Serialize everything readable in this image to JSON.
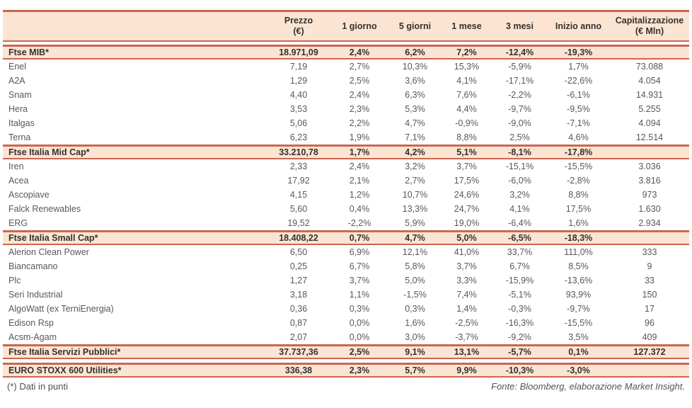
{
  "colors": {
    "band_background": "#fbe5d2",
    "border": "#c96753",
    "header_text": "#343130",
    "row_text": "#585858"
  },
  "table": {
    "header": {
      "cols": [
        {
          "l1": "Prezzo",
          "l2": "(€)"
        },
        {
          "l1": "1 giorno",
          "l2": ""
        },
        {
          "l1": "5 giorni",
          "l2": ""
        },
        {
          "l1": "1 mese",
          "l2": ""
        },
        {
          "l1": "3 mesi",
          "l2": ""
        },
        {
          "l1": "Inizio anno",
          "l2": ""
        },
        {
          "l1": "Capitalizzazione",
          "l2": "(€ Mln)"
        }
      ]
    },
    "sections": [
      {
        "index": {
          "name": "Ftse MIB*",
          "values": [
            "18.971,09",
            "2,4%",
            "6,2%",
            "7,2%",
            "-12,4%",
            "-19,3%",
            ""
          ]
        },
        "rows": [
          {
            "name": "Enel",
            "values": [
              "7,19",
              "2,7%",
              "10,3%",
              "15,3%",
              "-5,9%",
              "1,7%",
              "73.088"
            ]
          },
          {
            "name": "A2A",
            "values": [
              "1,29",
              "2,5%",
              "3,6%",
              "4,1%",
              "-17,1%",
              "-22,6%",
              "4.054"
            ]
          },
          {
            "name": "Snam",
            "values": [
              "4,40",
              "2,4%",
              "6,3%",
              "7,6%",
              "-2,2%",
              "-6,1%",
              "14.931"
            ]
          },
          {
            "name": "Hera",
            "values": [
              "3,53",
              "2,3%",
              "5,3%",
              "4,4%",
              "-9,7%",
              "-9,5%",
              "5.255"
            ]
          },
          {
            "name": "Italgas",
            "values": [
              "5,06",
              "2,2%",
              "4,7%",
              "-0,9%",
              "-9,0%",
              "-7,1%",
              "4.094"
            ]
          },
          {
            "name": "Terna",
            "values": [
              "6,23",
              "1,9%",
              "7,1%",
              "8,8%",
              "2,5%",
              "4,6%",
              "12.514"
            ]
          }
        ]
      },
      {
        "index": {
          "name": "Ftse Italia Mid Cap*",
          "values": [
            "33.210,78",
            "1,7%",
            "4,2%",
            "5,1%",
            "-8,1%",
            "-17,8%",
            ""
          ]
        },
        "rows": [
          {
            "name": "Iren",
            "values": [
              "2,33",
              "2,4%",
              "3,2%",
              "3,7%",
              "-15,1%",
              "-15,5%",
              "3.036"
            ]
          },
          {
            "name": "Acea",
            "values": [
              "17,92",
              "2,1%",
              "2,7%",
              "17,5%",
              "-6,0%",
              "-2,8%",
              "3.816"
            ]
          },
          {
            "name": "Ascopiave",
            "values": [
              "4,15",
              "1,2%",
              "10,7%",
              "24,6%",
              "3,2%",
              "8,8%",
              "973"
            ]
          },
          {
            "name": "Falck Renewables",
            "values": [
              "5,60",
              "0,4%",
              "13,3%",
              "24,7%",
              "4,1%",
              "17,5%",
              "1.630"
            ]
          },
          {
            "name": "ERG",
            "values": [
              "19,52",
              "-2,2%",
              "5,9%",
              "19,0%",
              "-6,4%",
              "1,6%",
              "2.934"
            ]
          }
        ]
      },
      {
        "index": {
          "name": "Ftse Italia Small Cap*",
          "values": [
            "18.408,22",
            "0,7%",
            "4,7%",
            "5,0%",
            "-6,5%",
            "-18,3%",
            ""
          ]
        },
        "rows": [
          {
            "name": "Alerion Clean Power",
            "values": [
              "6,50",
              "6,9%",
              "12,1%",
              "41,0%",
              "33,7%",
              "111,0%",
              "333"
            ]
          },
          {
            "name": "Biancamano",
            "values": [
              "0,25",
              "6,7%",
              "5,8%",
              "3,7%",
              "6,7%",
              "8,5%",
              "9"
            ]
          },
          {
            "name": "Plc",
            "values": [
              "1,27",
              "3,7%",
              "5,0%",
              "3,3%",
              "-15,9%",
              "-13,6%",
              "33"
            ]
          },
          {
            "name": "Seri Industrial",
            "values": [
              "3,18",
              "1,1%",
              "-1,5%",
              "7,4%",
              "-5,1%",
              "93,9%",
              "150"
            ]
          },
          {
            "name": "AlgoWatt (ex TerniEnergia)",
            "values": [
              "0,36",
              "0,3%",
              "0,3%",
              "1,4%",
              "-0,3%",
              "-9,7%",
              "17"
            ]
          },
          {
            "name": "Edison Rsp",
            "values": [
              "0,87",
              "0,0%",
              "1,6%",
              "-2,5%",
              "-16,3%",
              "-15,5%",
              "96"
            ]
          },
          {
            "name": "Acsm-Agam",
            "values": [
              "2,07",
              "0,0%",
              "3,0%",
              "-3,7%",
              "-9,2%",
              "3,5%",
              "409"
            ]
          }
        ]
      },
      {
        "index": {
          "name": "Ftse Italia Servizi Pubblici*",
          "values": [
            "37.737,36",
            "2,5%",
            "9,1%",
            "13,1%",
            "-5,7%",
            "0,1%",
            "127.372"
          ]
        },
        "rows": []
      },
      {
        "index": {
          "name": "EURO STOXX 600 Utilities*",
          "values": [
            "336,38",
            "2,3%",
            "5,7%",
            "9,9%",
            "-10,3%",
            "-3,0%",
            ""
          ]
        },
        "rows": [],
        "gap_before": true
      }
    ]
  },
  "footer": {
    "note": "(*) Dati in punti",
    "source": "Fonte: Bloomberg, elaborazione Market Insight."
  }
}
